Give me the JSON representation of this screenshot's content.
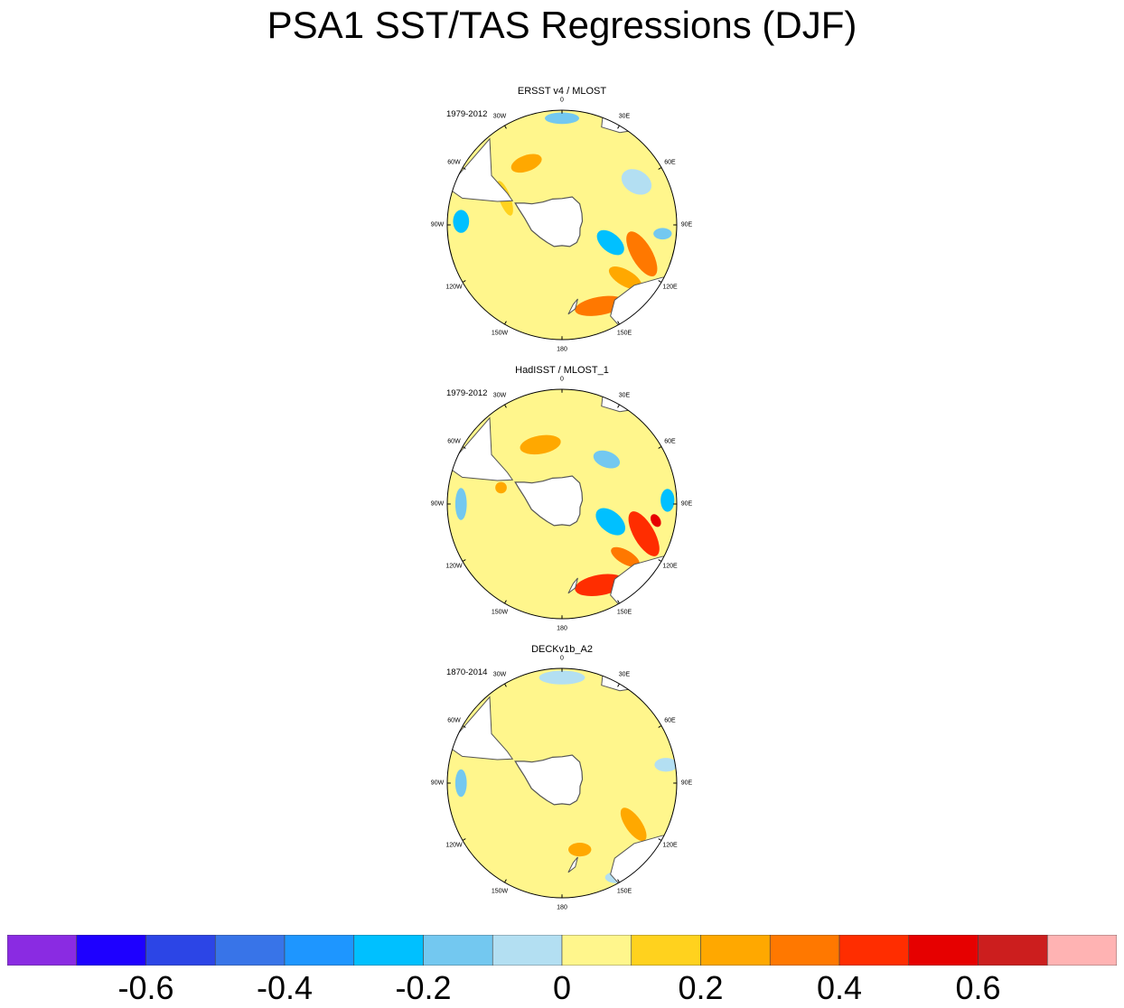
{
  "title": "PSA1 SST/TAS Regressions (DJF)",
  "chart_data": {
    "type": "heatmap",
    "projection": "south polar stereographic",
    "colorbar": {
      "colors": [
        "#8a2be2",
        "#1e00ff",
        "#2c45e6",
        "#3874e8",
        "#1e96ff",
        "#00c0ff",
        "#73c8f0",
        "#b3dff2",
        "#fff68c",
        "#ffd21e",
        "#ffa800",
        "#ff7800",
        "#ff2d00",
        "#e60000",
        "#cc1e1e",
        "#ffb3b3"
      ],
      "levels": [
        -0.7,
        -0.6,
        -0.5,
        -0.4,
        -0.3,
        -0.2,
        -0.1,
        0,
        0.1,
        0.2,
        0.3,
        0.4,
        0.5,
        0.6,
        0.7
      ],
      "tick_labels": [
        "-0.6",
        "-0.4",
        "-0.2",
        "0",
        "0.2",
        "0.4",
        "0.6"
      ]
    },
    "longitude_labels": [
      "0",
      "30E",
      "60E",
      "90E",
      "120E",
      "150E",
      "180",
      "150W",
      "120W",
      "90W",
      "60W",
      "30W"
    ],
    "panels": [
      {
        "title": "ERSST v4 / MLOST",
        "period": "1979-2012",
        "fields": [
          {
            "lon": 110,
            "r": 0.74,
            "value": 0.3,
            "rx": 0.22,
            "ry": 0.09,
            "rot": 60
          },
          {
            "lon": 155,
            "r": 0.78,
            "value": 0.3,
            "rx": 0.22,
            "ry": 0.08,
            "rot": -10
          },
          {
            "lon": 130,
            "r": 0.72,
            "value": 0.25,
            "rx": 0.16,
            "ry": 0.07,
            "rot": 30
          },
          {
            "lon": 95,
            "r": 0.88,
            "value": -0.15,
            "rx": 0.08,
            "ry": 0.05,
            "rot": 0
          },
          {
            "lon": 110,
            "r": 0.45,
            "value": -0.25,
            "rx": 0.14,
            "ry": 0.08,
            "rot": 40
          },
          {
            "lon": 330,
            "r": 0.62,
            "value": 0.25,
            "rx": 0.14,
            "ry": 0.07,
            "rot": -20
          },
          {
            "lon": 272,
            "r": 0.88,
            "value": -0.3,
            "rx": 0.07,
            "ry": 0.1,
            "rot": 0
          },
          {
            "lon": 0,
            "r": 0.93,
            "value": -0.2,
            "rx": 0.15,
            "ry": 0.05,
            "rot": 0
          },
          {
            "lon": 60,
            "r": 0.75,
            "value": -0.1,
            "rx": 0.14,
            "ry": 0.1,
            "rot": 30
          },
          {
            "lon": 295,
            "r": 0.55,
            "value": 0.12,
            "rx": 0.05,
            "ry": 0.16,
            "rot": -20
          }
        ]
      },
      {
        "title": "HadISST / MLOST_1",
        "period": "1979-2012",
        "fields": [
          {
            "lon": 110,
            "r": 0.76,
            "value": 0.45,
            "rx": 0.22,
            "ry": 0.09,
            "rot": 60
          },
          {
            "lon": 155,
            "r": 0.78,
            "value": 0.4,
            "rx": 0.22,
            "ry": 0.09,
            "rot": -10
          },
          {
            "lon": 100,
            "r": 0.83,
            "value": 0.55,
            "rx": 0.06,
            "ry": 0.04,
            "rot": 60
          },
          {
            "lon": 130,
            "r": 0.72,
            "value": 0.3,
            "rx": 0.14,
            "ry": 0.06,
            "rot": 30
          },
          {
            "lon": 110,
            "r": 0.45,
            "value": -0.3,
            "rx": 0.15,
            "ry": 0.09,
            "rot": 40
          },
          {
            "lon": 88,
            "r": 0.92,
            "value": -0.3,
            "rx": 0.06,
            "ry": 0.1,
            "rot": 0
          },
          {
            "lon": 340,
            "r": 0.55,
            "value": 0.2,
            "rx": 0.18,
            "ry": 0.08,
            "rot": -10
          },
          {
            "lon": 285,
            "r": 0.55,
            "value": 0.25,
            "rx": 0.05,
            "ry": 0.05,
            "rot": 0
          },
          {
            "lon": 270,
            "r": 0.88,
            "value": -0.2,
            "rx": 0.05,
            "ry": 0.14,
            "rot": 0
          },
          {
            "lon": 45,
            "r": 0.55,
            "value": -0.2,
            "rx": 0.12,
            "ry": 0.07,
            "rot": 20
          }
        ]
      },
      {
        "title": "DECKv1b_A2",
        "period": "1870-2014",
        "fields": [
          {
            "lon": 120,
            "r": 0.72,
            "value": 0.25,
            "rx": 0.17,
            "ry": 0.07,
            "rot": 55
          },
          {
            "lon": 165,
            "r": 0.6,
            "value": 0.2,
            "rx": 0.1,
            "ry": 0.06,
            "rot": 0
          },
          {
            "lon": 270,
            "r": 0.88,
            "value": -0.15,
            "rx": 0.05,
            "ry": 0.12,
            "rot": 0
          },
          {
            "lon": 80,
            "r": 0.92,
            "value": -0.1,
            "rx": 0.1,
            "ry": 0.06,
            "rot": 0
          },
          {
            "lon": 0,
            "r": 0.92,
            "value": -0.1,
            "rx": 0.2,
            "ry": 0.06,
            "rot": 0
          },
          {
            "lon": 300,
            "r": 0.75,
            "value": 0.12,
            "rx": 0.05,
            "ry": 0.05,
            "rot": 0
          },
          {
            "lon": 150,
            "r": 0.95,
            "value": -0.1,
            "rx": 0.1,
            "ry": 0.05,
            "rot": 0
          }
        ]
      }
    ]
  }
}
